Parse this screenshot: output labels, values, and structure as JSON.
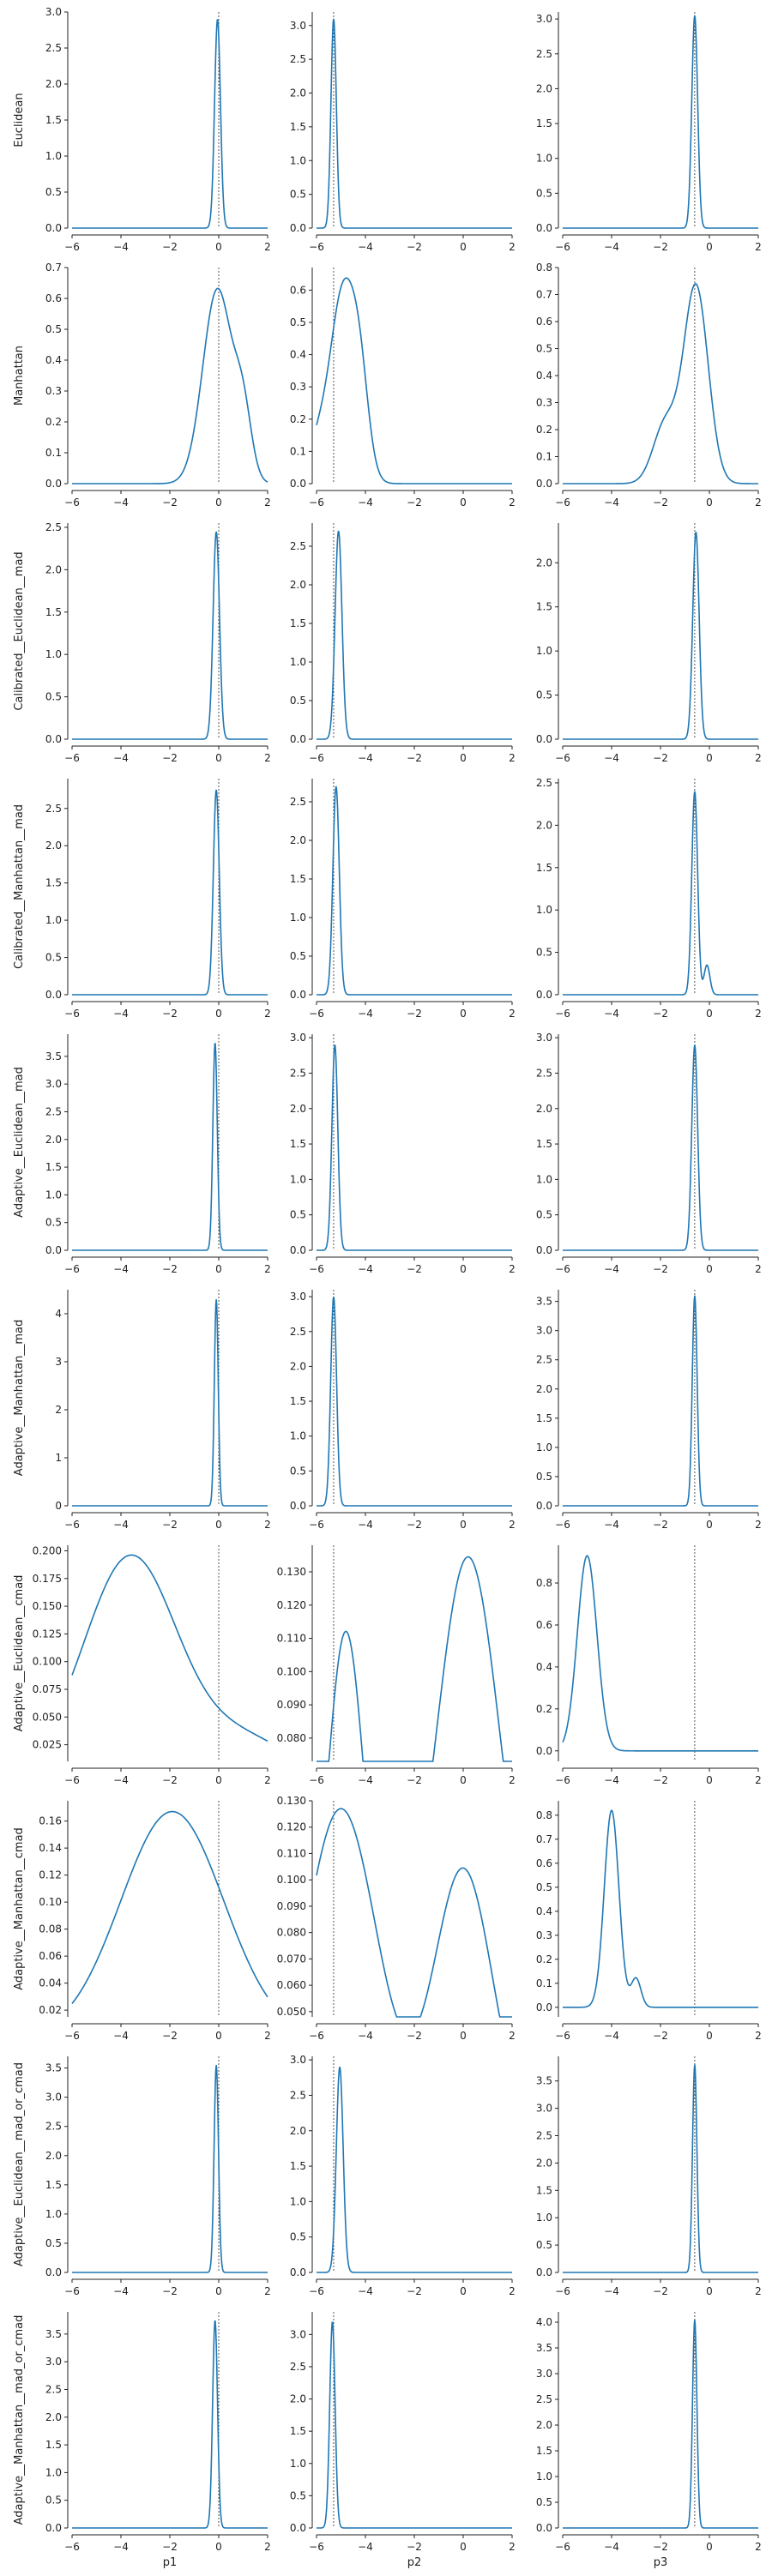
{
  "chart_data": {
    "type": "line",
    "xlim": [
      -6,
      2
    ],
    "x_ticks": [
      -6,
      -4,
      -2,
      0,
      2
    ],
    "columns": [
      "p1",
      "p2",
      "p3"
    ],
    "true_values": [
      0,
      -5.3,
      -0.6
    ],
    "rows": [
      {
        "ylabel": "Euclidean",
        "panels": [
          {
            "ylim": [
              0,
              3.0
            ],
            "yticks": [
              0.0,
              0.5,
              1.0,
              1.5,
              2.0,
              2.5,
              3.0
            ],
            "peaks": [
              {
                "center": -0.05,
                "sigma": 0.12,
                "height": 2.9
              }
            ]
          },
          {
            "ylim": [
              0,
              3.2
            ],
            "yticks": [
              0.0,
              0.5,
              1.0,
              1.5,
              2.0,
              2.5,
              3.0
            ],
            "peaks": [
              {
                "center": -5.3,
                "sigma": 0.11,
                "height": 3.1
              }
            ]
          },
          {
            "ylim": [
              0,
              3.1
            ],
            "yticks": [
              0.0,
              0.5,
              1.0,
              1.5,
              2.0,
              2.5,
              3.0
            ],
            "peaks": [
              {
                "center": -0.6,
                "sigma": 0.12,
                "height": 3.05
              }
            ]
          }
        ]
      },
      {
        "ylabel": "Manhattan",
        "panels": [
          {
            "ylim": [
              0,
              0.7
            ],
            "yticks": [
              0.0,
              0.1,
              0.2,
              0.3,
              0.4,
              0.5,
              0.6,
              0.7
            ],
            "peaks": [
              {
                "center": -0.05,
                "sigma": 0.6,
                "height": 0.63
              },
              {
                "center": 1.0,
                "sigma": 0.35,
                "height": 0.2
              }
            ]
          },
          {
            "ylim": [
              0,
              0.67
            ],
            "yticks": [
              0.0,
              0.1,
              0.2,
              0.3,
              0.4,
              0.5,
              0.6
            ],
            "peaks": [
              {
                "center": -4.9,
                "sigma": 0.55,
                "height": 0.6
              },
              {
                "center": -4.2,
                "sigma": 0.35,
                "height": 0.2
              },
              {
                "center": -6.0,
                "sigma": 0.4,
                "height": 0.1
              }
            ]
          },
          {
            "ylim": [
              0,
              0.8
            ],
            "yticks": [
              0.0,
              0.1,
              0.2,
              0.3,
              0.4,
              0.5,
              0.6,
              0.7,
              0.8
            ],
            "peaks": [
              {
                "center": -0.55,
                "sigma": 0.5,
                "height": 0.73
              },
              {
                "center": -1.8,
                "sigma": 0.5,
                "height": 0.22
              }
            ]
          }
        ]
      },
      {
        "ylabel": "Calibrated__Euclidean__mad",
        "panels": [
          {
            "ylim": [
              0,
              2.55
            ],
            "yticks": [
              0.0,
              0.5,
              1.0,
              1.5,
              2.0,
              2.5
            ],
            "peaks": [
              {
                "center": -0.1,
                "sigma": 0.13,
                "height": 2.45
              }
            ]
          },
          {
            "ylim": [
              0,
              2.8
            ],
            "yticks": [
              0.0,
              0.5,
              1.0,
              1.5,
              2.0,
              2.5
            ],
            "peaks": [
              {
                "center": -5.1,
                "sigma": 0.14,
                "height": 2.7
              }
            ]
          },
          {
            "ylim": [
              0,
              2.45
            ],
            "yticks": [
              0.0,
              0.5,
              1.0,
              1.5,
              2.0
            ],
            "peaks": [
              {
                "center": -0.55,
                "sigma": 0.13,
                "height": 2.35
              }
            ]
          }
        ]
      },
      {
        "ylabel": "Calibrated__Manhattan__mad",
        "panels": [
          {
            "ylim": [
              0,
              2.9
            ],
            "yticks": [
              0.0,
              0.5,
              1.0,
              1.5,
              2.0,
              2.5
            ],
            "peaks": [
              {
                "center": -0.1,
                "sigma": 0.12,
                "height": 2.75
              }
            ]
          },
          {
            "ylim": [
              0,
              2.8
            ],
            "yticks": [
              0.0,
              0.5,
              1.0,
              1.5,
              2.0,
              2.5
            ],
            "peaks": [
              {
                "center": -5.2,
                "sigma": 0.13,
                "height": 2.7
              }
            ]
          },
          {
            "ylim": [
              0,
              2.55
            ],
            "yticks": [
              0.0,
              0.5,
              1.0,
              1.5,
              2.0,
              2.5
            ],
            "peaks": [
              {
                "center": -0.6,
                "sigma": 0.12,
                "height": 2.4
              },
              {
                "center": -0.1,
                "sigma": 0.12,
                "height": 0.35
              }
            ]
          }
        ]
      },
      {
        "ylabel": "Adaptive__Euclidean__mad",
        "panels": [
          {
            "ylim": [
              0,
              3.9
            ],
            "yticks": [
              0.0,
              0.5,
              1.0,
              1.5,
              2.0,
              2.5,
              3.0,
              3.5
            ],
            "peaks": [
              {
                "center": -0.15,
                "sigma": 0.09,
                "height": 3.75
              }
            ]
          },
          {
            "ylim": [
              0,
              3.05
            ],
            "yticks": [
              0.0,
              0.5,
              1.0,
              1.5,
              2.0,
              2.5,
              3.0
            ],
            "peaks": [
              {
                "center": -5.25,
                "sigma": 0.12,
                "height": 2.9
              }
            ]
          },
          {
            "ylim": [
              0,
              3.05
            ],
            "yticks": [
              0.0,
              0.5,
              1.0,
              1.5,
              2.0,
              2.5,
              3.0
            ],
            "peaks": [
              {
                "center": -0.6,
                "sigma": 0.12,
                "height": 2.9
              }
            ]
          }
        ]
      },
      {
        "ylabel": "Adaptive__Manhattan__mad",
        "panels": [
          {
            "ylim": [
              0,
              4.5
            ],
            "yticks": [
              0,
              1,
              2,
              3,
              4
            ],
            "peaks": [
              {
                "center": -0.1,
                "sigma": 0.08,
                "height": 4.3
              }
            ]
          },
          {
            "ylim": [
              0,
              3.1
            ],
            "yticks": [
              0.0,
              0.5,
              1.0,
              1.5,
              2.0,
              2.5,
              3.0
            ],
            "peaks": [
              {
                "center": -5.3,
                "sigma": 0.12,
                "height": 3.0
              }
            ]
          },
          {
            "ylim": [
              0,
              3.7
            ],
            "yticks": [
              0.0,
              0.5,
              1.0,
              1.5,
              2.0,
              2.5,
              3.0,
              3.5
            ],
            "peaks": [
              {
                "center": -0.6,
                "sigma": 0.1,
                "height": 3.6
              }
            ]
          }
        ]
      },
      {
        "ylabel": "Adaptive__Euclidean__cmad",
        "panels": [
          {
            "ylim": [
              0.01,
              0.205
            ],
            "yticks": [
              0.025,
              0.05,
              0.075,
              0.1,
              0.125,
              0.15,
              0.175,
              0.2
            ],
            "peaks": [
              {
                "center": -3.6,
                "sigma": 1.9,
                "height": 0.195
              },
              {
                "center": 1.0,
                "sigma": 1.8,
                "height": 0.03
              }
            ],
            "baseline": 0.0
          },
          {
            "ylim": [
              0.073,
              0.138
            ],
            "yticks": [
              0.08,
              0.09,
              0.1,
              0.11,
              0.12,
              0.13
            ],
            "peaks": [
              {
                "center": -4.8,
                "sigma": 0.75,
                "height": 0.112
              },
              {
                "center": 0.2,
                "sigma": 1.3,
                "height": 0.1345
              }
            ],
            "baseline": 0.0
          },
          {
            "ylim": [
              -0.05,
              0.98
            ],
            "yticks": [
              0.0,
              0.2,
              0.4,
              0.6,
              0.8
            ],
            "peaks": [
              {
                "center": -5.0,
                "sigma": 0.4,
                "height": 0.93
              }
            ]
          }
        ]
      },
      {
        "ylabel": "Adaptive__Manhattan__cmad",
        "panels": [
          {
            "ylim": [
              0.015,
              0.175
            ],
            "yticks": [
              0.02,
              0.04,
              0.06,
              0.08,
              0.1,
              0.12,
              0.14,
              0.16
            ],
            "peaks": [
              {
                "center": -1.9,
                "sigma": 2.1,
                "height": 0.167
              }
            ],
            "baseline": 0.0
          },
          {
            "ylim": [
              0.048,
              0.13
            ],
            "yticks": [
              0.05,
              0.06,
              0.07,
              0.08,
              0.09,
              0.1,
              0.11,
              0.12,
              0.13
            ],
            "peaks": [
              {
                "center": -5.0,
                "sigma": 1.5,
                "height": 0.127
              },
              {
                "center": 0.0,
                "sigma": 1.2,
                "height": 0.104
              }
            ],
            "baseline": 0.0
          },
          {
            "ylim": [
              -0.04,
              0.86
            ],
            "yticks": [
              0.0,
              0.1,
              0.2,
              0.3,
              0.4,
              0.5,
              0.6,
              0.7,
              0.8
            ],
            "peaks": [
              {
                "center": -4.0,
                "sigma": 0.3,
                "height": 0.82
              },
              {
                "center": -3.0,
                "sigma": 0.2,
                "height": 0.12
              }
            ]
          }
        ]
      },
      {
        "ylabel": "Adaptive__Euclidean__mad_or_cmad",
        "panels": [
          {
            "ylim": [
              0,
              3.7
            ],
            "yticks": [
              0.0,
              0.5,
              1.0,
              1.5,
              2.0,
              2.5,
              3.0,
              3.5
            ],
            "peaks": [
              {
                "center": -0.1,
                "sigma": 0.09,
                "height": 3.55
              }
            ]
          },
          {
            "ylim": [
              0,
              3.05
            ],
            "yticks": [
              0.0,
              0.5,
              1.0,
              1.5,
              2.0,
              2.5,
              3.0
            ],
            "peaks": [
              {
                "center": -5.05,
                "sigma": 0.14,
                "height": 2.9
              }
            ]
          },
          {
            "ylim": [
              0,
              3.95
            ],
            "yticks": [
              0.0,
              0.5,
              1.0,
              1.5,
              2.0,
              2.5,
              3.0,
              3.5
            ],
            "peaks": [
              {
                "center": -0.6,
                "sigma": 0.09,
                "height": 3.8
              }
            ]
          }
        ]
      },
      {
        "ylabel": "Adaptive__Manhattan__mad_or_cmad",
        "panels": [
          {
            "ylim": [
              0,
              3.9
            ],
            "yticks": [
              0.0,
              0.5,
              1.0,
              1.5,
              2.0,
              2.5,
              3.0,
              3.5
            ],
            "peaks": [
              {
                "center": -0.15,
                "sigma": 0.1,
                "height": 3.75
              }
            ]
          },
          {
            "ylim": [
              0,
              3.35
            ],
            "yticks": [
              0.0,
              0.5,
              1.0,
              1.5,
              2.0,
              2.5,
              3.0
            ],
            "peaks": [
              {
                "center": -5.35,
                "sigma": 0.11,
                "height": 3.2
              }
            ]
          },
          {
            "ylim": [
              0,
              4.2
            ],
            "yticks": [
              0.0,
              0.5,
              1.0,
              1.5,
              2.0,
              2.5,
              3.0,
              3.5,
              4.0
            ],
            "peaks": [
              {
                "center": -0.6,
                "sigma": 0.09,
                "height": 4.05
              }
            ]
          }
        ]
      }
    ]
  }
}
